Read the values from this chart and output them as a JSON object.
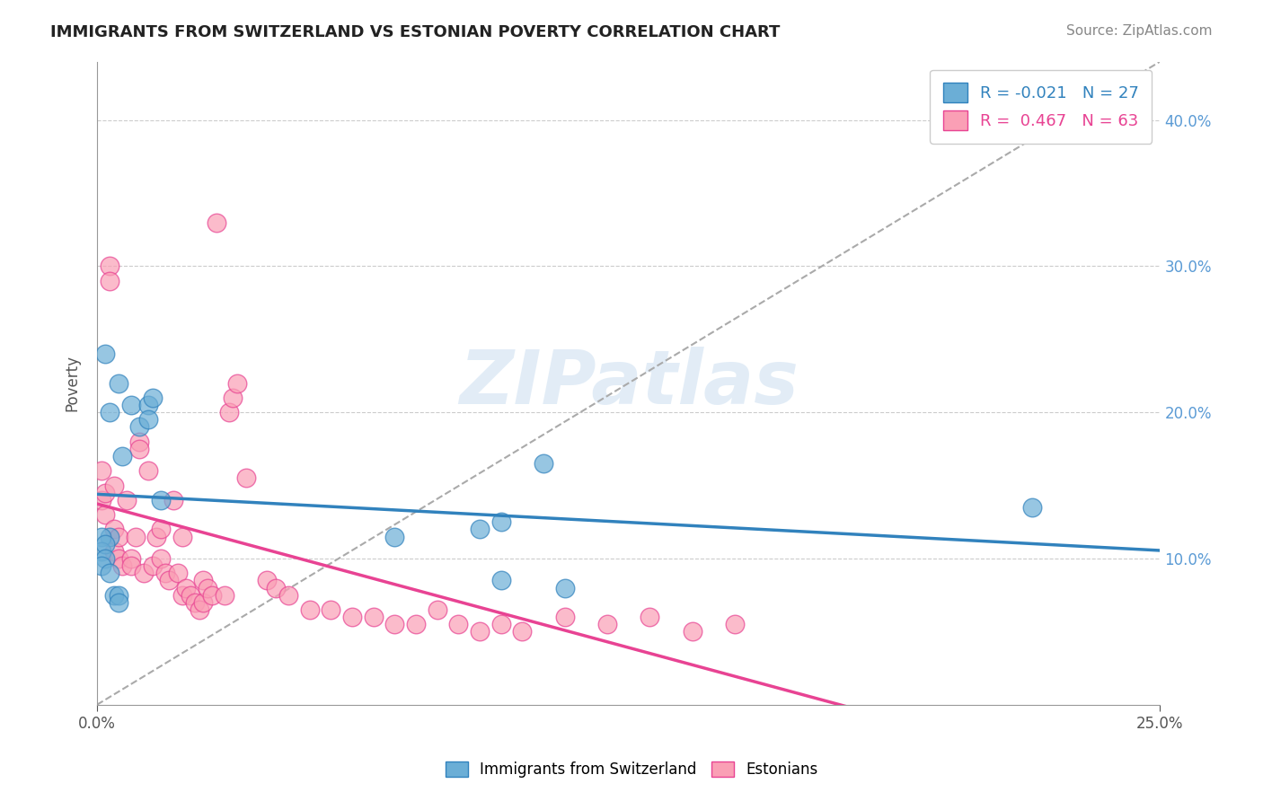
{
  "title": "IMMIGRANTS FROM SWITZERLAND VS ESTONIAN POVERTY CORRELATION CHART",
  "source_text": "Source: ZipAtlas.com",
  "ylabel": "Poverty",
  "xlim": [
    0.0,
    0.25
  ],
  "ylim": [
    0.0,
    0.44
  ],
  "xtick_labels": [
    "0.0%",
    "25.0%"
  ],
  "yticks": [
    0.1,
    0.2,
    0.3,
    0.4
  ],
  "ytick_labels": [
    "10.0%",
    "20.0%",
    "30.0%",
    "40.0%"
  ],
  "legend_r1": "R = -0.021",
  "legend_n1": "N = 27",
  "legend_r2": "R =  0.467",
  "legend_n2": "N = 63",
  "color_blue": "#6baed6",
  "color_pink": "#fa9fb5",
  "color_blue_line": "#3182bd",
  "color_pink_line": "#e84393",
  "watermark": "ZIPatlas",
  "watermark_color": "#c6dbef",
  "background_color": "#ffffff",
  "grid_color": "#cccccc",
  "blue_scatter_x": [
    0.005,
    0.002,
    0.003,
    0.008,
    0.01,
    0.012,
    0.012,
    0.013,
    0.015,
    0.006,
    0.003,
    0.001,
    0.001,
    0.002,
    0.002,
    0.001,
    0.003,
    0.004,
    0.005,
    0.005,
    0.07,
    0.09,
    0.095,
    0.105,
    0.11,
    0.095,
    0.22
  ],
  "blue_scatter_y": [
    0.22,
    0.24,
    0.2,
    0.205,
    0.19,
    0.205,
    0.195,
    0.21,
    0.14,
    0.17,
    0.115,
    0.115,
    0.105,
    0.11,
    0.1,
    0.095,
    0.09,
    0.075,
    0.075,
    0.07,
    0.115,
    0.12,
    0.125,
    0.165,
    0.08,
    0.085,
    0.135
  ],
  "pink_scatter_x": [
    0.001,
    0.001,
    0.002,
    0.002,
    0.003,
    0.003,
    0.004,
    0.004,
    0.004,
    0.005,
    0.005,
    0.006,
    0.007,
    0.008,
    0.008,
    0.009,
    0.01,
    0.01,
    0.011,
    0.012,
    0.013,
    0.014,
    0.015,
    0.015,
    0.016,
    0.017,
    0.018,
    0.019,
    0.02,
    0.02,
    0.021,
    0.022,
    0.023,
    0.024,
    0.025,
    0.025,
    0.026,
    0.027,
    0.028,
    0.03,
    0.031,
    0.032,
    0.033,
    0.035,
    0.04,
    0.042,
    0.045,
    0.05,
    0.055,
    0.06,
    0.065,
    0.07,
    0.075,
    0.08,
    0.085,
    0.09,
    0.095,
    0.1,
    0.11,
    0.12,
    0.13,
    0.14,
    0.15
  ],
  "pink_scatter_y": [
    0.16,
    0.14,
    0.145,
    0.13,
    0.3,
    0.29,
    0.105,
    0.12,
    0.15,
    0.115,
    0.1,
    0.095,
    0.14,
    0.1,
    0.095,
    0.115,
    0.18,
    0.175,
    0.09,
    0.16,
    0.095,
    0.115,
    0.12,
    0.1,
    0.09,
    0.085,
    0.14,
    0.09,
    0.075,
    0.115,
    0.08,
    0.075,
    0.07,
    0.065,
    0.07,
    0.085,
    0.08,
    0.075,
    0.33,
    0.075,
    0.2,
    0.21,
    0.22,
    0.155,
    0.085,
    0.08,
    0.075,
    0.065,
    0.065,
    0.06,
    0.06,
    0.055,
    0.055,
    0.065,
    0.055,
    0.05,
    0.055,
    0.05,
    0.06,
    0.055,
    0.06,
    0.05,
    0.055
  ]
}
